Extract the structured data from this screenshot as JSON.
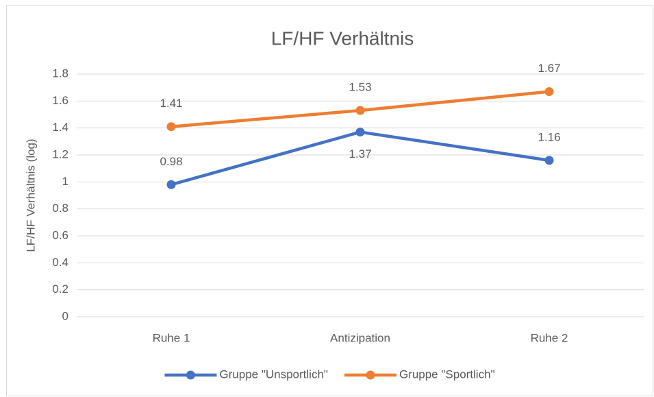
{
  "chart_data": {
    "type": "line",
    "title": "LF/HF Verhältnis",
    "y_label": "LF/HF Verhältnis (log)",
    "categories": [
      "Ruhe 1",
      "Antizipation",
      "Ruhe 2"
    ],
    "series": [
      {
        "name": "Gruppe \"Unsportlich\"",
        "color": "#4472c4",
        "values": [
          0.98,
          1.37,
          1.16
        ]
      },
      {
        "name": "Gruppe \"Sportlich\"",
        "color": "#ed7d31",
        "values": [
          1.41,
          1.53,
          1.67
        ]
      }
    ],
    "ylim": [
      0,
      1.8
    ],
    "yticks": [
      0,
      0.2,
      0.4,
      0.6,
      0.8,
      1,
      1.2,
      1.4,
      1.6,
      1.8
    ],
    "grid": true,
    "legend": "bottom"
  }
}
